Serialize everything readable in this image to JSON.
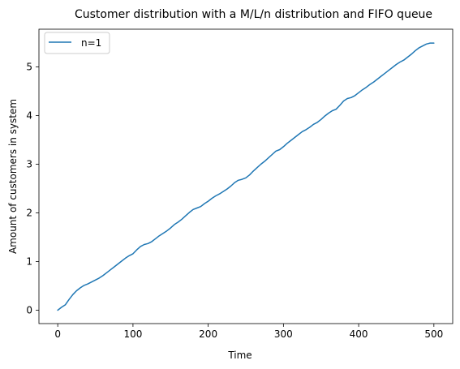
{
  "chart_data": {
    "type": "line",
    "title": "Customer distribution with a M/L/n distribution and FIFO queue",
    "xlabel": "Time",
    "ylabel": "Amount of customers in system",
    "xlim": [
      -25,
      525
    ],
    "ylim": [
      -0.275,
      5.775
    ],
    "xticks": [
      0,
      100,
      200,
      300,
      400,
      500
    ],
    "yticks": [
      0,
      1,
      2,
      3,
      4,
      5
    ],
    "grid": false,
    "legend_position": "upper left",
    "series": [
      {
        "name": "n=1",
        "color": "#1f77b4",
        "points": [
          [
            0,
            0.0
          ],
          [
            5,
            0.06
          ],
          [
            10,
            0.11
          ],
          [
            15,
            0.22
          ],
          [
            20,
            0.32
          ],
          [
            25,
            0.4
          ],
          [
            30,
            0.46
          ],
          [
            35,
            0.51
          ],
          [
            40,
            0.54
          ],
          [
            45,
            0.58
          ],
          [
            50,
            0.62
          ],
          [
            55,
            0.66
          ],
          [
            60,
            0.71
          ],
          [
            65,
            0.77
          ],
          [
            70,
            0.83
          ],
          [
            75,
            0.89
          ],
          [
            80,
            0.95
          ],
          [
            85,
            1.01
          ],
          [
            90,
            1.07
          ],
          [
            95,
            1.12
          ],
          [
            100,
            1.16
          ],
          [
            105,
            1.24
          ],
          [
            110,
            1.31
          ],
          [
            115,
            1.35
          ],
          [
            120,
            1.37
          ],
          [
            125,
            1.41
          ],
          [
            130,
            1.47
          ],
          [
            135,
            1.53
          ],
          [
            140,
            1.58
          ],
          [
            145,
            1.63
          ],
          [
            150,
            1.69
          ],
          [
            155,
            1.76
          ],
          [
            160,
            1.81
          ],
          [
            165,
            1.87
          ],
          [
            170,
            1.94
          ],
          [
            175,
            2.01
          ],
          [
            180,
            2.07
          ],
          [
            185,
            2.1
          ],
          [
            190,
            2.13
          ],
          [
            195,
            2.19
          ],
          [
            200,
            2.24
          ],
          [
            205,
            2.3
          ],
          [
            210,
            2.35
          ],
          [
            215,
            2.39
          ],
          [
            220,
            2.44
          ],
          [
            225,
            2.49
          ],
          [
            230,
            2.55
          ],
          [
            235,
            2.62
          ],
          [
            240,
            2.67
          ],
          [
            245,
            2.69
          ],
          [
            250,
            2.72
          ],
          [
            255,
            2.78
          ],
          [
            260,
            2.86
          ],
          [
            265,
            2.93
          ],
          [
            270,
            3.0
          ],
          [
            275,
            3.06
          ],
          [
            280,
            3.13
          ],
          [
            285,
            3.2
          ],
          [
            290,
            3.27
          ],
          [
            295,
            3.3
          ],
          [
            300,
            3.36
          ],
          [
            305,
            3.43
          ],
          [
            310,
            3.49
          ],
          [
            315,
            3.55
          ],
          [
            320,
            3.61
          ],
          [
            325,
            3.67
          ],
          [
            330,
            3.71
          ],
          [
            335,
            3.76
          ],
          [
            340,
            3.82
          ],
          [
            345,
            3.86
          ],
          [
            350,
            3.92
          ],
          [
            355,
            3.99
          ],
          [
            360,
            4.05
          ],
          [
            365,
            4.1
          ],
          [
            370,
            4.13
          ],
          [
            375,
            4.21
          ],
          [
            380,
            4.3
          ],
          [
            385,
            4.35
          ],
          [
            390,
            4.37
          ],
          [
            395,
            4.41
          ],
          [
            400,
            4.47
          ],
          [
            405,
            4.53
          ],
          [
            410,
            4.58
          ],
          [
            415,
            4.64
          ],
          [
            420,
            4.69
          ],
          [
            425,
            4.75
          ],
          [
            430,
            4.81
          ],
          [
            435,
            4.87
          ],
          [
            440,
            4.93
          ],
          [
            445,
            4.99
          ],
          [
            450,
            5.05
          ],
          [
            455,
            5.1
          ],
          [
            460,
            5.14
          ],
          [
            465,
            5.2
          ],
          [
            470,
            5.26
          ],
          [
            475,
            5.33
          ],
          [
            480,
            5.39
          ],
          [
            485,
            5.43
          ],
          [
            490,
            5.47
          ],
          [
            495,
            5.49
          ],
          [
            500,
            5.49
          ]
        ]
      }
    ]
  }
}
